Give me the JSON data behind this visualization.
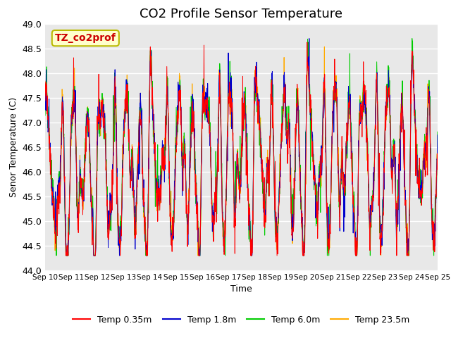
{
  "title": "CO2 Profile Sensor Temperature",
  "xlabel": "Time",
  "ylabel": "Senor Temperature (C)",
  "ylim": [
    44.0,
    49.0
  ],
  "yticks": [
    44.0,
    44.5,
    45.0,
    45.5,
    46.0,
    46.5,
    47.0,
    47.5,
    48.0,
    48.5,
    49.0
  ],
  "date_labels": [
    "Sep 10",
    "Sep 11",
    "Sep 12",
    "Sep 13",
    "Sep 14",
    "Sep 15",
    "Sep 16",
    "Sep 17",
    "Sep 18",
    "Sep 19",
    "Sep 20",
    "Sep 21",
    "Sep 22",
    "Sep 23",
    "Sep 24",
    "Sep 25"
  ],
  "legend_entries": [
    "Temp 0.35m",
    "Temp 1.8m",
    "Temp 6.0m",
    "Temp 23.5m"
  ],
  "line_colors": [
    "#ff0000",
    "#0000cc",
    "#00cc00",
    "#ffaa00"
  ],
  "annotation_text": "TZ_co2prof",
  "annotation_color": "#cc0000",
  "annotation_bg": "#ffffcc",
  "bg_color": "#e8e8e8",
  "grid_color": "#ffffff",
  "title_fontsize": 13,
  "axis_fontsize": 9,
  "legend_fontsize": 9,
  "n_points": 1500,
  "seed": 12345
}
